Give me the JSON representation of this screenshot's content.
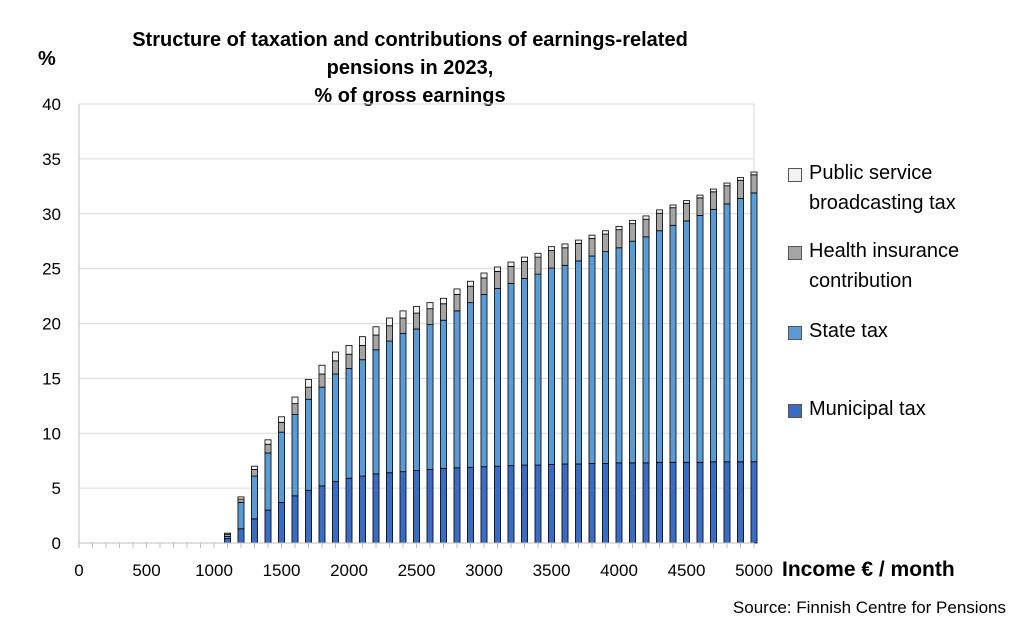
{
  "chart_data": {
    "type": "bar",
    "stacked": true,
    "title_lines": [
      "Structure of taxation and contributions of earnings-related pensions in 2023,",
      "% of gross earnings"
    ],
    "ylabel": "%",
    "xlabel": "Income € / month",
    "source": "Source: Finnish Centre for Pensions",
    "ylim": [
      0,
      40
    ],
    "xlim": [
      0,
      5000
    ],
    "yticks": [
      0,
      5,
      10,
      15,
      20,
      25,
      30,
      35,
      40
    ],
    "xticks": [
      0,
      500,
      1000,
      1500,
      2000,
      2500,
      3000,
      3500,
      4000,
      4500,
      5000
    ],
    "x": [
      1100,
      1200,
      1300,
      1400,
      1500,
      1600,
      1700,
      1800,
      1900,
      2000,
      2100,
      2200,
      2300,
      2400,
      2500,
      2600,
      2700,
      2800,
      2900,
      3000,
      3100,
      3200,
      3300,
      3400,
      3500,
      3600,
      3700,
      3800,
      3900,
      4000,
      4100,
      4200,
      4300,
      4400,
      4500,
      4600,
      4700,
      4800,
      4900,
      5000
    ],
    "series": [
      {
        "name": "Municipal tax",
        "color": "#3a6cc4",
        "values": [
          0.4,
          1.3,
          2.2,
          3.0,
          3.7,
          4.3,
          4.8,
          5.2,
          5.6,
          5.9,
          6.1,
          6.3,
          6.4,
          6.5,
          6.6,
          6.7,
          6.8,
          6.85,
          6.9,
          6.95,
          7.0,
          7.05,
          7.1,
          7.1,
          7.15,
          7.2,
          7.2,
          7.25,
          7.25,
          7.3,
          7.3,
          7.3,
          7.35,
          7.35,
          7.35,
          7.35,
          7.4,
          7.4,
          7.4,
          7.4
        ]
      },
      {
        "name": "State tax",
        "color": "#5b9bd5",
        "values": [
          0.2,
          2.4,
          3.9,
          5.2,
          6.4,
          7.4,
          8.3,
          9.0,
          9.8,
          10.0,
          10.6,
          11.3,
          12.0,
          12.6,
          12.9,
          13.2,
          13.5,
          14.3,
          15.0,
          15.7,
          16.2,
          16.6,
          17.0,
          17.4,
          17.9,
          18.1,
          18.5,
          18.9,
          19.3,
          19.6,
          20.2,
          20.6,
          21.1,
          21.6,
          22.0,
          22.5,
          23.0,
          23.5,
          24.0,
          24.5
        ]
      },
      {
        "name": "Health insurance contribution",
        "color": "#a5a5a5",
        "values": [
          0.2,
          0.3,
          0.6,
          0.8,
          0.9,
          1.0,
          1.1,
          1.2,
          1.2,
          1.3,
          1.3,
          1.35,
          1.4,
          1.4,
          1.45,
          1.45,
          1.5,
          1.5,
          1.5,
          1.5,
          1.55,
          1.55,
          1.55,
          1.55,
          1.6,
          1.6,
          1.6,
          1.6,
          1.6,
          1.65,
          1.6,
          1.6,
          1.6,
          1.6,
          1.6,
          1.6,
          1.6,
          1.65,
          1.65,
          1.65
        ]
      },
      {
        "name": "Public service broadcasting tax",
        "color": "#f2f2f2",
        "values": [
          0.1,
          0.2,
          0.3,
          0.4,
          0.5,
          0.6,
          0.7,
          0.8,
          0.8,
          0.8,
          0.8,
          0.75,
          0.7,
          0.65,
          0.6,
          0.55,
          0.5,
          0.5,
          0.45,
          0.45,
          0.4,
          0.4,
          0.4,
          0.35,
          0.35,
          0.35,
          0.3,
          0.3,
          0.3,
          0.3,
          0.3,
          0.3,
          0.3,
          0.25,
          0.25,
          0.25,
          0.25,
          0.25,
          0.25,
          0.25
        ]
      }
    ],
    "legend": {
      "placement": "right"
    },
    "grid": {
      "y": true,
      "x": false
    }
  }
}
